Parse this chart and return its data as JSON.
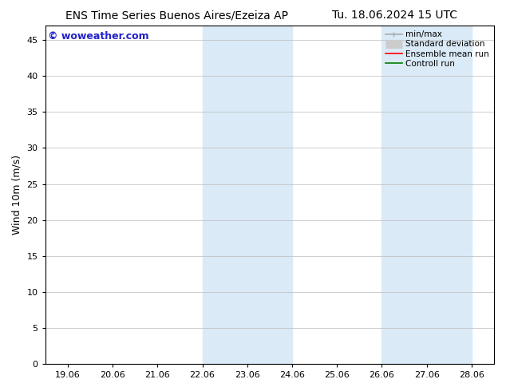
{
  "title_left": "ENS Time Series Buenos Aires/Ezeiza AP",
  "title_right": "Tu. 18.06.2024 15 UTC",
  "ylabel": "Wind 10m (m/s)",
  "watermark": "© woweather.com",
  "x_tick_labels": [
    "19.06",
    "20.06",
    "21.06",
    "22.06",
    "23.06",
    "24.06",
    "25.06",
    "26.06",
    "27.06",
    "28.06"
  ],
  "x_tick_positions": [
    0,
    1,
    2,
    3,
    4,
    5,
    6,
    7,
    8,
    9
  ],
  "ylim": [
    0,
    47
  ],
  "yticks": [
    0,
    5,
    10,
    15,
    20,
    25,
    30,
    35,
    40,
    45
  ],
  "xlim": [
    -0.5,
    9.5
  ],
  "bg_color": "#ffffff",
  "plot_bg_color": "#ffffff",
  "shaded_regions": [
    {
      "x_start": 3.0,
      "x_end": 5.0,
      "color": "#daeaf7"
    },
    {
      "x_start": 7.0,
      "x_end": 9.0,
      "color": "#daeaf7"
    }
  ],
  "legend_entries": [
    {
      "label": "min/max",
      "color": "#aaaaaa",
      "lw": 1.2,
      "type": "line_with_cap"
    },
    {
      "label": "Standard deviation",
      "color": "#cccccc",
      "lw": 8,
      "type": "thick_line"
    },
    {
      "label": "Ensemble mean run",
      "color": "#ff0000",
      "lw": 1.2,
      "type": "line"
    },
    {
      "label": "Controll run",
      "color": "#008000",
      "lw": 1.2,
      "type": "line"
    }
  ],
  "watermark_color": "#2222cc",
  "title_fontsize": 10,
  "axis_label_fontsize": 9,
  "tick_fontsize": 8,
  "legend_fontsize": 7.5,
  "tick_color": "#000000",
  "spine_color": "#000000"
}
